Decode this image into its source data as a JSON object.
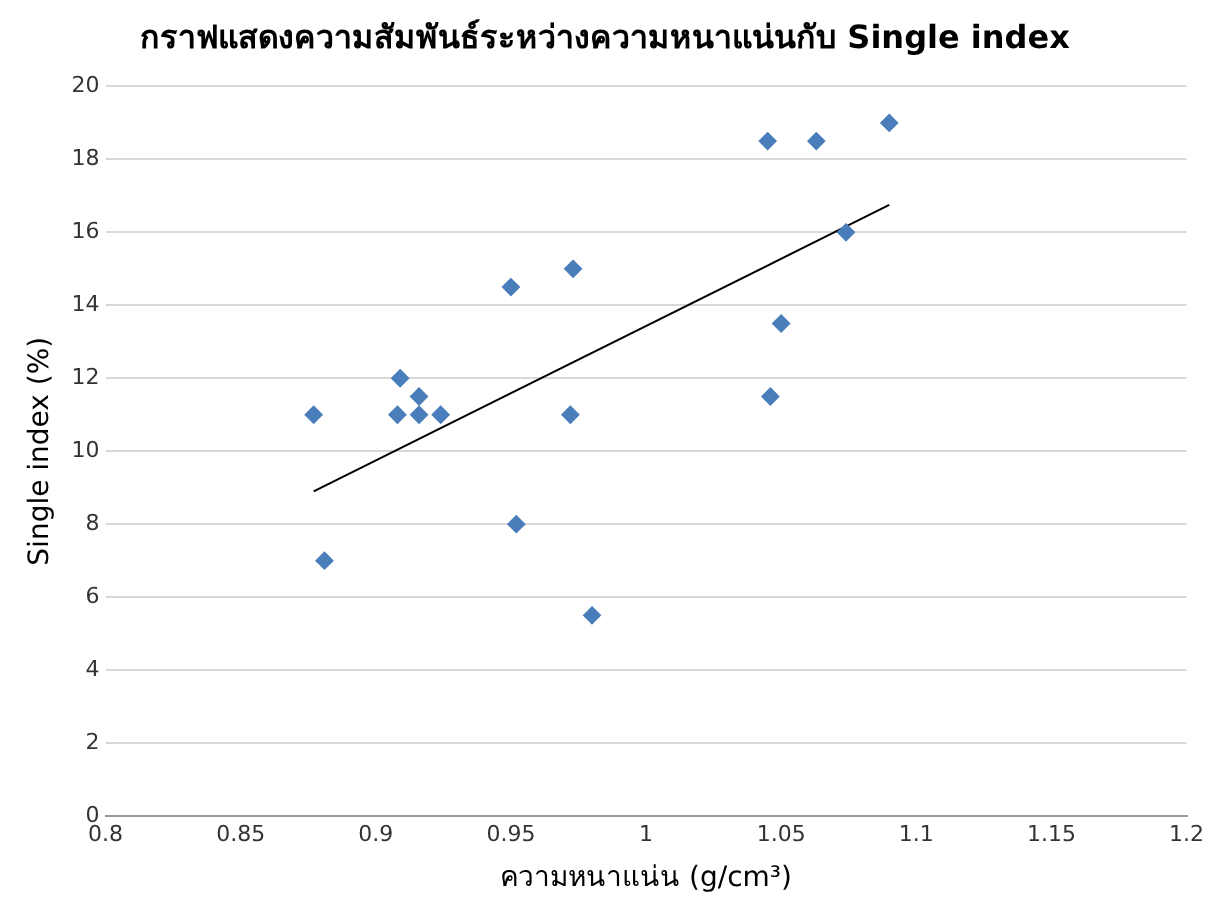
{
  "chart_data": {
    "type": "scatter",
    "title": "กราฟแสดงความสัมพันธ์ระหว่างความหนาแน่นกับ Single index",
    "xlabel": "ความหนาแน่น (g/cm³)",
    "ylabel": "Single index (%)",
    "xlim": [
      0.8,
      1.2
    ],
    "xticks": [
      0.8,
      0.85,
      0.9,
      0.95,
      1,
      1.05,
      1.1,
      1.15,
      1.2
    ],
    "ylim": [
      0,
      20
    ],
    "yticks": [
      0,
      2,
      4,
      6,
      8,
      10,
      12,
      14,
      16,
      18,
      20
    ],
    "grid": "y",
    "marker": "diamond",
    "series": [
      {
        "type": "scatter",
        "color": "#4a7ebb",
        "x": [
          0.877,
          0.881,
          0.909,
          0.908,
          0.916,
          0.916,
          0.924,
          0.95,
          0.952,
          0.973,
          0.972,
          0.98,
          1.045,
          1.046,
          1.05,
          1.063,
          1.074,
          1.09
        ],
        "values": [
          11,
          7,
          12,
          11,
          11.5,
          11,
          11,
          14.5,
          8,
          15,
          11,
          5.5,
          18.5,
          11.5,
          13.5,
          18.5,
          16,
          19
        ]
      },
      {
        "type": "line",
        "color": "#000000",
        "marker": "none",
        "x": [
          0.877,
          1.09
        ],
        "values": [
          8.9,
          16.75
        ]
      }
    ]
  }
}
